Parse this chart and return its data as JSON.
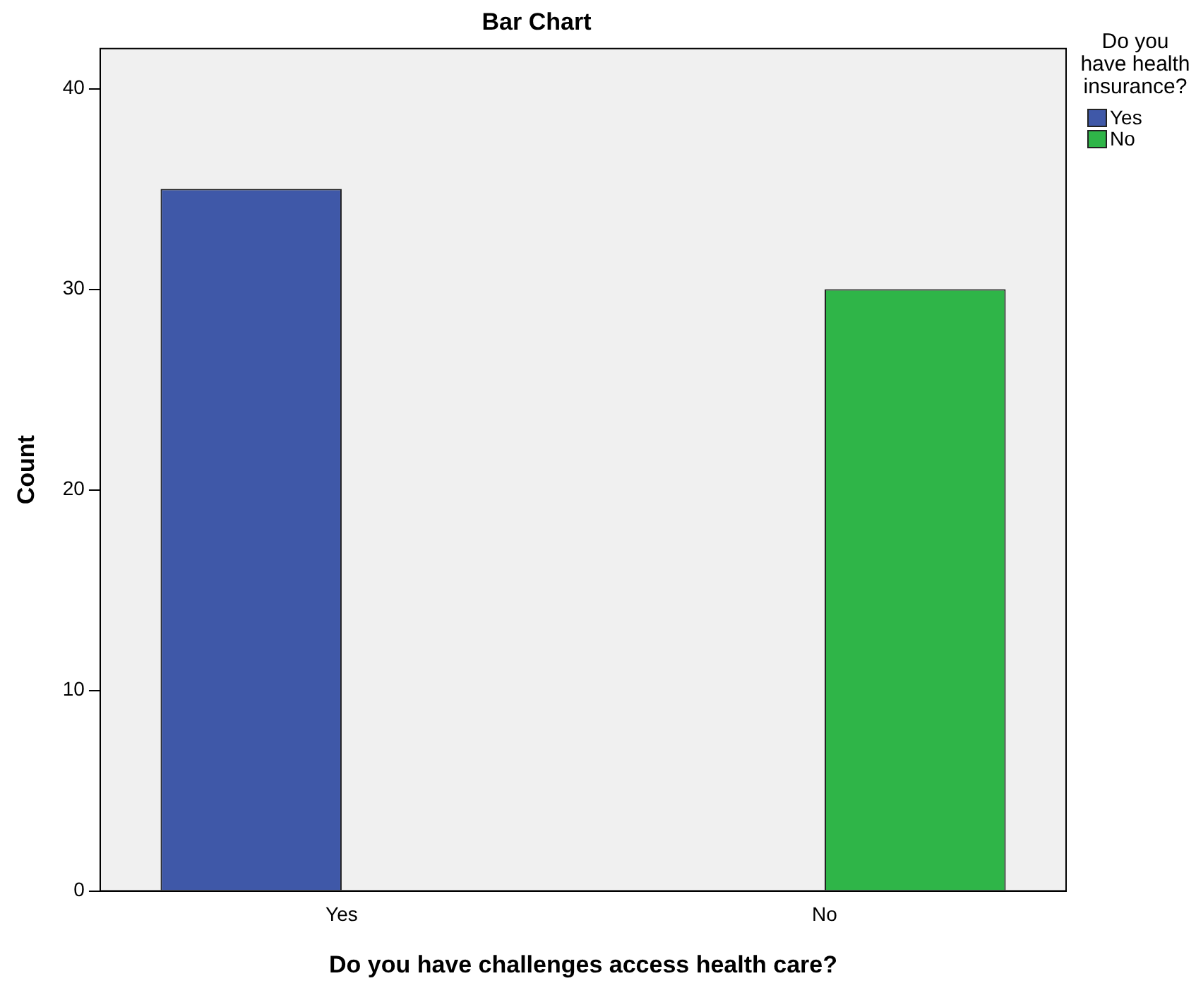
{
  "chart_data": {
    "type": "bar",
    "title": "Bar Chart",
    "xlabel": "Do you have challenges access health care?",
    "ylabel": "Count",
    "legend_title": "Do you have health insurance?",
    "categories": [
      "Yes",
      "No"
    ],
    "series": [
      {
        "name": "Yes",
        "color": "#3f58a8",
        "values": [
          35,
          null
        ]
      },
      {
        "name": "No",
        "color": "#2fb548",
        "values": [
          null,
          30
        ]
      }
    ],
    "ylim": [
      0,
      42
    ],
    "yticks": [
      0,
      10,
      20,
      30,
      40
    ],
    "grid": false,
    "legend": "top right"
  }
}
